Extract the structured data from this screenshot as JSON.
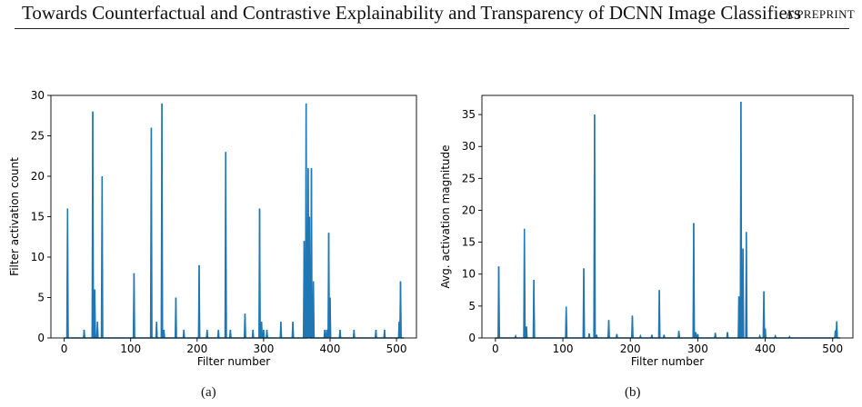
{
  "header": {
    "title": "Towards Counterfactual and Contrastive Explainability and Transparency of DCNN Image Classifiers",
    "tag": "A PREPRINT"
  },
  "captions": [
    "(a)",
    "(b)"
  ],
  "colors": {
    "series": "#1f77b4",
    "axis": "#000000"
  },
  "chart_data": [
    {
      "type": "line",
      "title": "",
      "xlabel": "Filter number",
      "ylabel": "Filter activation count",
      "xlim": [
        -20,
        530
      ],
      "ylim": [
        0,
        30
      ],
      "xticks": [
        0,
        100,
        200,
        300,
        400,
        500
      ],
      "yticks": [
        0,
        5,
        10,
        15,
        20,
        25,
        30
      ],
      "grid": false,
      "spikes": [
        [
          5,
          16
        ],
        [
          30,
          1
        ],
        [
          43,
          28
        ],
        [
          46,
          6
        ],
        [
          50,
          2
        ],
        [
          57,
          20
        ],
        [
          105,
          8
        ],
        [
          131,
          26
        ],
        [
          139,
          2
        ],
        [
          147,
          29
        ],
        [
          150,
          1
        ],
        [
          168,
          5
        ],
        [
          180,
          1
        ],
        [
          203,
          9
        ],
        [
          215,
          1
        ],
        [
          232,
          1
        ],
        [
          243,
          23
        ],
        [
          250,
          1
        ],
        [
          272,
          3
        ],
        [
          284,
          1
        ],
        [
          294,
          16
        ],
        [
          297,
          2
        ],
        [
          300,
          1
        ],
        [
          305,
          1
        ],
        [
          326,
          2
        ],
        [
          344,
          2
        ],
        [
          361,
          12
        ],
        [
          364,
          29
        ],
        [
          367,
          21
        ],
        [
          369,
          15
        ],
        [
          372,
          21
        ],
        [
          375,
          7
        ],
        [
          392,
          1
        ],
        [
          395,
          1
        ],
        [
          398,
          13
        ],
        [
          400,
          5
        ],
        [
          415,
          1
        ],
        [
          436,
          1
        ],
        [
          469,
          1
        ],
        [
          482,
          1
        ],
        [
          504,
          2
        ],
        [
          506,
          7
        ]
      ]
    },
    {
      "type": "line",
      "title": "",
      "xlabel": "Filter number",
      "ylabel": "Avg. activation magnitude",
      "xlim": [
        -20,
        530
      ],
      "ylim": [
        0,
        38
      ],
      "xticks": [
        0,
        100,
        200,
        300,
        400,
        500
      ],
      "yticks": [
        0,
        5,
        10,
        15,
        20,
        25,
        30,
        35
      ],
      "grid": false,
      "spikes": [
        [
          5,
          11.2
        ],
        [
          30,
          0.3
        ],
        [
          43,
          17.1
        ],
        [
          46,
          1.8
        ],
        [
          57,
          9.1
        ],
        [
          105,
          4.9
        ],
        [
          131,
          10.9
        ],
        [
          139,
          0.7
        ],
        [
          147,
          35
        ],
        [
          150,
          0.5
        ],
        [
          168,
          2.8
        ],
        [
          180,
          0.6
        ],
        [
          203,
          3.5
        ],
        [
          215,
          0.3
        ],
        [
          232,
          0.5
        ],
        [
          243,
          7.5
        ],
        [
          250,
          0.5
        ],
        [
          272,
          1.1
        ],
        [
          294,
          18
        ],
        [
          297,
          0.9
        ],
        [
          300,
          0.6
        ],
        [
          326,
          0.8
        ],
        [
          344,
          0.9
        ],
        [
          361,
          6.5
        ],
        [
          364,
          37
        ],
        [
          367,
          14
        ],
        [
          372,
          16.6
        ],
        [
          392,
          0.3
        ],
        [
          398,
          7.3
        ],
        [
          400,
          1.5
        ],
        [
          415,
          0.3
        ],
        [
          436,
          0.2
        ],
        [
          504,
          1.2
        ],
        [
          506,
          2.6
        ]
      ]
    }
  ]
}
